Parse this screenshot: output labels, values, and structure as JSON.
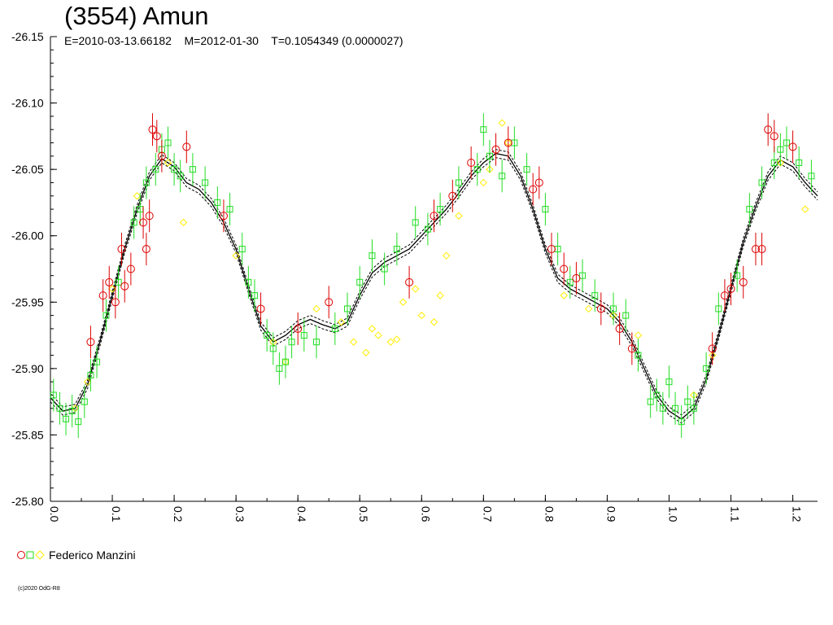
{
  "header": {
    "title": "(3554) Amun",
    "subtitle": "E=2010-03-13.66182    M=2012-01-30    T=0.1054349 (0.0000027)"
  },
  "legend": {
    "observer": "Federico Manzini"
  },
  "footer": {
    "copyright": "(c)2020 OdG-R8"
  },
  "colors": {
    "red": "#dd0000",
    "green": "#22dd22",
    "yellow": "#ffee00",
    "fit": "#000000",
    "axis": "#000000"
  },
  "chart_data": {
    "type": "scatter",
    "title": "(3554) Amun",
    "xlabel": "",
    "ylabel": "",
    "xlim": [
      0,
      1.24
    ],
    "ylim": [
      -26.15,
      -25.8
    ],
    "x_ticks": [
      "0.0",
      "0.1",
      "0.2",
      "0.3",
      "0.4",
      "0.5",
      "0.6",
      "0.7",
      "0.8",
      "0.9",
      "1.0",
      "1.1",
      "1.2"
    ],
    "y_ticks": [
      "-26.15",
      "-26.10",
      "-26.05",
      "-26.00",
      "-25.95",
      "-25.90",
      "-25.85",
      "-25.80"
    ],
    "grid": false,
    "legend_position": "bottom-left",
    "fit_curve": [
      [
        0.0,
        -25.878
      ],
      [
        0.02,
        -25.868
      ],
      [
        0.04,
        -25.87
      ],
      [
        0.06,
        -25.888
      ],
      [
        0.08,
        -25.92
      ],
      [
        0.1,
        -25.955
      ],
      [
        0.12,
        -25.99
      ],
      [
        0.14,
        -26.02
      ],
      [
        0.16,
        -26.045
      ],
      [
        0.18,
        -26.058
      ],
      [
        0.2,
        -26.052
      ],
      [
        0.22,
        -26.04
      ],
      [
        0.24,
        -26.035
      ],
      [
        0.26,
        -26.025
      ],
      [
        0.28,
        -26.01
      ],
      [
        0.3,
        -25.99
      ],
      [
        0.32,
        -25.96
      ],
      [
        0.34,
        -25.932
      ],
      [
        0.36,
        -25.92
      ],
      [
        0.38,
        -25.925
      ],
      [
        0.4,
        -25.933
      ],
      [
        0.42,
        -25.937
      ],
      [
        0.44,
        -25.933
      ],
      [
        0.46,
        -25.93
      ],
      [
        0.48,
        -25.935
      ],
      [
        0.5,
        -25.955
      ],
      [
        0.52,
        -25.972
      ],
      [
        0.54,
        -25.98
      ],
      [
        0.56,
        -25.985
      ],
      [
        0.58,
        -25.99
      ],
      [
        0.6,
        -26.0
      ],
      [
        0.62,
        -26.01
      ],
      [
        0.64,
        -26.02
      ],
      [
        0.66,
        -26.032
      ],
      [
        0.68,
        -26.045
      ],
      [
        0.7,
        -26.055
      ],
      [
        0.72,
        -26.062
      ],
      [
        0.74,
        -26.06
      ],
      [
        0.76,
        -26.045
      ],
      [
        0.78,
        -26.02
      ],
      [
        0.8,
        -25.99
      ],
      [
        0.82,
        -25.968
      ],
      [
        0.84,
        -25.96
      ],
      [
        0.86,
        -25.955
      ],
      [
        0.88,
        -25.95
      ],
      [
        0.9,
        -25.945
      ],
      [
        0.92,
        -25.935
      ],
      [
        0.94,
        -25.92
      ],
      [
        0.96,
        -25.9
      ],
      [
        0.98,
        -25.88
      ],
      [
        1.0,
        -25.868
      ],
      [
        1.02,
        -25.862
      ],
      [
        1.04,
        -25.87
      ],
      [
        1.06,
        -25.892
      ],
      [
        1.08,
        -25.925
      ],
      [
        1.1,
        -25.96
      ],
      [
        1.12,
        -25.995
      ],
      [
        1.14,
        -26.022
      ],
      [
        1.16,
        -26.045
      ],
      [
        1.18,
        -26.057
      ],
      [
        1.2,
        -26.052
      ],
      [
        1.22,
        -26.04
      ],
      [
        1.24,
        -26.03
      ]
    ],
    "series": [
      {
        "name": "Federico Manzini",
        "marker": "circle",
        "color": "#dd0000",
        "points": [
          [
            0.065,
            -25.92
          ],
          [
            0.085,
            -25.955
          ],
          [
            0.095,
            -25.965
          ],
          [
            0.105,
            -25.95
          ],
          [
            0.115,
            -25.99
          ],
          [
            0.12,
            -25.962
          ],
          [
            0.13,
            -25.975
          ],
          [
            0.15,
            -26.01
          ],
          [
            0.155,
            -25.99
          ],
          [
            0.16,
            -26.015
          ],
          [
            0.165,
            -26.08
          ],
          [
            0.172,
            -26.075
          ],
          [
            0.18,
            -26.06
          ],
          [
            0.22,
            -26.067
          ],
          [
            0.28,
            -26.015
          ],
          [
            0.34,
            -25.945
          ],
          [
            0.4,
            -25.93
          ],
          [
            0.45,
            -25.95
          ],
          [
            0.58,
            -25.965
          ],
          [
            0.62,
            -26.015
          ],
          [
            0.65,
            -26.03
          ],
          [
            0.68,
            -26.055
          ],
          [
            0.72,
            -26.065
          ],
          [
            0.74,
            -26.07
          ],
          [
            0.78,
            -26.035
          ],
          [
            0.79,
            -26.04
          ],
          [
            0.81,
            -25.99
          ],
          [
            0.83,
            -25.975
          ],
          [
            0.85,
            -25.968
          ],
          [
            0.89,
            -25.945
          ],
          [
            0.92,
            -25.93
          ],
          [
            0.94,
            -25.915
          ],
          [
            1.07,
            -25.915
          ],
          [
            1.09,
            -25.955
          ],
          [
            1.1,
            -25.96
          ],
          [
            1.12,
            -25.965
          ],
          [
            1.14,
            -25.99
          ],
          [
            1.15,
            -25.99
          ],
          [
            1.16,
            -26.08
          ],
          [
            1.17,
            -26.075
          ],
          [
            1.2,
            -26.067
          ]
        ]
      },
      {
        "name": "Federico Manzini",
        "marker": "square",
        "color": "#22dd22",
        "points": [
          [
            0.005,
            -25.88
          ],
          [
            0.015,
            -25.87
          ],
          [
            0.025,
            -25.862
          ],
          [
            0.035,
            -25.868
          ],
          [
            0.045,
            -25.86
          ],
          [
            0.055,
            -25.875
          ],
          [
            0.065,
            -25.895
          ],
          [
            0.075,
            -25.905
          ],
          [
            0.09,
            -25.94
          ],
          [
            0.11,
            -25.965
          ],
          [
            0.135,
            -26.01
          ],
          [
            0.145,
            -26.02
          ],
          [
            0.155,
            -26.04
          ],
          [
            0.17,
            -26.05
          ],
          [
            0.18,
            -26.065
          ],
          [
            0.19,
            -26.07
          ],
          [
            0.2,
            -26.05
          ],
          [
            0.21,
            -26.045
          ],
          [
            0.23,
            -26.05
          ],
          [
            0.25,
            -26.04
          ],
          [
            0.27,
            -26.025
          ],
          [
            0.29,
            -26.02
          ],
          [
            0.31,
            -25.99
          ],
          [
            0.32,
            -25.965
          ],
          [
            0.33,
            -25.955
          ],
          [
            0.35,
            -25.925
          ],
          [
            0.36,
            -25.915
          ],
          [
            0.37,
            -25.9
          ],
          [
            0.38,
            -25.905
          ],
          [
            0.39,
            -25.92
          ],
          [
            0.41,
            -25.925
          ],
          [
            0.43,
            -25.92
          ],
          [
            0.46,
            -25.93
          ],
          [
            0.48,
            -25.945
          ],
          [
            0.5,
            -25.965
          ],
          [
            0.52,
            -25.985
          ],
          [
            0.54,
            -25.975
          ],
          [
            0.56,
            -25.99
          ],
          [
            0.59,
            -26.01
          ],
          [
            0.61,
            -26.005
          ],
          [
            0.63,
            -26.02
          ],
          [
            0.66,
            -26.04
          ],
          [
            0.69,
            -26.05
          ],
          [
            0.7,
            -26.08
          ],
          [
            0.71,
            -26.06
          ],
          [
            0.73,
            -26.045
          ],
          [
            0.75,
            -26.07
          ],
          [
            0.77,
            -26.05
          ],
          [
            0.8,
            -26.02
          ],
          [
            0.82,
            -25.99
          ],
          [
            0.84,
            -25.965
          ],
          [
            0.86,
            -25.97
          ],
          [
            0.88,
            -25.955
          ],
          [
            0.91,
            -25.945
          ],
          [
            0.93,
            -25.94
          ],
          [
            0.95,
            -25.91
          ],
          [
            0.97,
            -25.875
          ],
          [
            0.98,
            -25.88
          ],
          [
            0.99,
            -25.87
          ],
          [
            1.0,
            -25.89
          ],
          [
            1.01,
            -25.87
          ],
          [
            1.02,
            -25.86
          ],
          [
            1.03,
            -25.875
          ],
          [
            1.04,
            -25.87
          ],
          [
            1.06,
            -25.9
          ],
          [
            1.08,
            -25.945
          ],
          [
            1.11,
            -25.97
          ],
          [
            1.13,
            -26.02
          ],
          [
            1.15,
            -26.04
          ],
          [
            1.17,
            -26.055
          ],
          [
            1.18,
            -26.065
          ],
          [
            1.19,
            -26.07
          ],
          [
            1.21,
            -26.055
          ],
          [
            1.23,
            -26.045
          ]
        ]
      },
      {
        "name": "Federico Manzini",
        "marker": "diamond",
        "color": "#ffee00",
        "points": [
          [
            0.04,
            -25.87
          ],
          [
            0.06,
            -25.89
          ],
          [
            0.1,
            -25.96
          ],
          [
            0.14,
            -26.03
          ],
          [
            0.19,
            -26.055
          ],
          [
            0.215,
            -26.01
          ],
          [
            0.3,
            -25.985
          ],
          [
            0.36,
            -25.92
          ],
          [
            0.38,
            -25.905
          ],
          [
            0.43,
            -25.945
          ],
          [
            0.47,
            -25.935
          ],
          [
            0.49,
            -25.92
          ],
          [
            0.51,
            -25.912
          ],
          [
            0.52,
            -25.93
          ],
          [
            0.53,
            -25.925
          ],
          [
            0.55,
            -25.92
          ],
          [
            0.56,
            -25.922
          ],
          [
            0.57,
            -25.95
          ],
          [
            0.59,
            -25.96
          ],
          [
            0.6,
            -25.94
          ],
          [
            0.62,
            -25.935
          ],
          [
            0.63,
            -25.955
          ],
          [
            0.64,
            -25.985
          ],
          [
            0.66,
            -26.015
          ],
          [
            0.7,
            -26.04
          ],
          [
            0.71,
            -26.05
          ],
          [
            0.73,
            -26.085
          ],
          [
            0.74,
            -26.07
          ],
          [
            0.83,
            -25.955
          ],
          [
            0.87,
            -25.945
          ],
          [
            0.91,
            -25.94
          ],
          [
            0.95,
            -25.925
          ],
          [
            1.04,
            -25.88
          ],
          [
            1.07,
            -25.91
          ],
          [
            1.18,
            -26.055
          ],
          [
            1.22,
            -26.02
          ]
        ]
      }
    ]
  }
}
